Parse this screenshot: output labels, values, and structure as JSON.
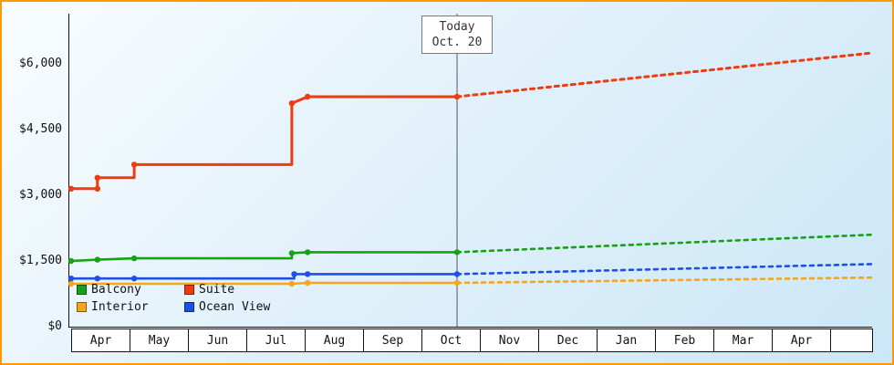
{
  "chart_data": {
    "type": "line",
    "x_axis": {
      "month_labels": [
        "Apr",
        "May",
        "Jun",
        "Jul",
        "Aug",
        "Sep",
        "Oct",
        "Nov",
        "Dec",
        "Jan",
        "Feb",
        "Mar",
        "Apr"
      ]
    },
    "y_axis": {
      "ticks": [
        {
          "label": "$0",
          "value": 0
        },
        {
          "label": "$1,500",
          "value": 1500
        },
        {
          "label": "$3,000",
          "value": 3000
        },
        {
          "label": "$4,500",
          "value": 4500
        },
        {
          "label": "$6,000",
          "value": 6000
        }
      ],
      "range": [
        0,
        6600
      ],
      "grid": false
    },
    "today_marker": {
      "line1": "Today",
      "line2": "Oct. 20",
      "month_position": 6.61
    },
    "legend_position": "bottom-left",
    "series": [
      {
        "name": "Balcony",
        "color": "#18a018",
        "line_width": 2.6,
        "solid": [
          [
            0,
            1500
          ],
          [
            0.45,
            1530
          ],
          [
            1.08,
            1560
          ],
          [
            3.78,
            1560
          ],
          [
            3.78,
            1680
          ],
          [
            4.05,
            1700
          ],
          [
            6.61,
            1700
          ]
        ],
        "markers": [
          [
            0,
            1500
          ],
          [
            0.45,
            1530
          ],
          [
            1.08,
            1560
          ],
          [
            3.78,
            1680
          ],
          [
            4.05,
            1700
          ],
          [
            6.61,
            1700
          ]
        ],
        "projection": [
          [
            6.61,
            1700
          ],
          [
            13.72,
            2100
          ]
        ]
      },
      {
        "name": "Suite",
        "color": "#ee3b10",
        "line_width": 3,
        "solid": [
          [
            0,
            3150
          ],
          [
            0.45,
            3150
          ],
          [
            0.45,
            3400
          ],
          [
            1.08,
            3400
          ],
          [
            1.08,
            3700
          ],
          [
            3.78,
            3700
          ],
          [
            3.78,
            5100
          ],
          [
            4.05,
            5250
          ],
          [
            6.61,
            5250
          ]
        ],
        "markers": [
          [
            0,
            3150
          ],
          [
            0.45,
            3150
          ],
          [
            0.45,
            3400
          ],
          [
            1.08,
            3700
          ],
          [
            3.78,
            5100
          ],
          [
            4.05,
            5250
          ],
          [
            6.61,
            5250
          ]
        ],
        "projection": [
          [
            6.61,
            5250
          ],
          [
            13.72,
            6250
          ]
        ]
      },
      {
        "name": "Interior",
        "color": "#f3a71b",
        "line_width": 2.6,
        "solid": [
          [
            0,
            980
          ],
          [
            3.78,
            980
          ],
          [
            4.05,
            1000
          ],
          [
            6.61,
            1000
          ]
        ],
        "markers": [
          [
            0,
            980
          ],
          [
            3.78,
            980
          ],
          [
            4.05,
            1000
          ],
          [
            6.61,
            1000
          ]
        ],
        "projection": [
          [
            6.61,
            1000
          ],
          [
            13.72,
            1120
          ]
        ]
      },
      {
        "name": "Ocean View",
        "color": "#1d50e8",
        "line_width": 2.6,
        "solid": [
          [
            0,
            1100
          ],
          [
            0.45,
            1100
          ],
          [
            1.08,
            1100
          ],
          [
            3.82,
            1100
          ],
          [
            3.82,
            1200
          ],
          [
            4.05,
            1200
          ],
          [
            6.61,
            1200
          ]
        ],
        "markers": [
          [
            0,
            1100
          ],
          [
            0.45,
            1100
          ],
          [
            1.08,
            1100
          ],
          [
            3.82,
            1200
          ],
          [
            4.05,
            1200
          ],
          [
            6.61,
            1200
          ]
        ],
        "projection": [
          [
            6.61,
            1200
          ],
          [
            13.72,
            1430
          ]
        ]
      }
    ]
  },
  "colors": {
    "border": "#ff9900",
    "background_start": "#f9fdff",
    "background_end": "#cbe7f7",
    "axis": "#111111",
    "today_line": "#555566",
    "month_box_bg": "#ffffff",
    "month_box_border": "#111111",
    "today_box_border": "#7a7a7a",
    "text": "#111111"
  }
}
